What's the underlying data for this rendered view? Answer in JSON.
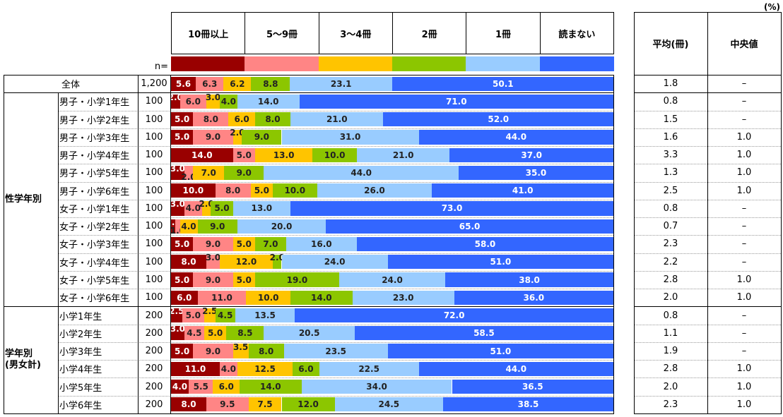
{
  "unit_label": "(%)",
  "n_label": "n=",
  "right_columns": [
    "平均(冊)",
    "中央値"
  ],
  "legend": [
    {
      "label": "10冊以上",
      "color": "#990000",
      "text_color": "#ffffff"
    },
    {
      "label": "5〜9冊",
      "color": "#FF8585",
      "text_color": "#222222"
    },
    {
      "label": "3〜4冊",
      "color": "#FFC400",
      "text_color": "#222222"
    },
    {
      "label": "2冊",
      "color": "#8CC600",
      "text_color": "#222222"
    },
    {
      "label": "1冊",
      "color": "#99CCFF",
      "text_color": "#222222"
    },
    {
      "label": "読まない",
      "color": "#3366FF",
      "text_color": "#ffffff"
    }
  ],
  "chart_data": {
    "type": "bar",
    "orientation": "horizontal-stacked",
    "unit": "%",
    "categories": [
      "10冊以上",
      "5〜9冊",
      "3〜4冊",
      "2冊",
      "1冊",
      "読まない"
    ],
    "xlim": [
      0,
      100
    ],
    "groups": [
      {
        "name": "",
        "rows": [
          {
            "label": "全体",
            "n": "1,200",
            "values": [
              5.6,
              6.3,
              6.2,
              8.8,
              23.1,
              50.1
            ],
            "avg": "1.8",
            "median": "–"
          }
        ]
      },
      {
        "name": "性学年別",
        "rows": [
          {
            "label": "男子・小学1年生",
            "n": "100",
            "values": [
              2.0,
              6.0,
              3.0,
              4.0,
              14.0,
              71.0
            ],
            "avg": "0.8",
            "median": "–"
          },
          {
            "label": "男子・小学2年生",
            "n": "100",
            "values": [
              5.0,
              8.0,
              6.0,
              8.0,
              21.0,
              52.0
            ],
            "avg": "1.5",
            "median": "–"
          },
          {
            "label": "男子・小学3年生",
            "n": "100",
            "values": [
              5.0,
              9.0,
              2.0,
              9.0,
              31.0,
              44.0
            ],
            "avg": "1.6",
            "median": "1.0"
          },
          {
            "label": "男子・小学4年生",
            "n": "100",
            "values": [
              14.0,
              5.0,
              13.0,
              10.0,
              21.0,
              37.0
            ],
            "avg": "3.3",
            "median": "1.0"
          },
          {
            "label": "男子・小学5年生",
            "n": "100",
            "values": [
              3.0,
              2.0,
              7.0,
              9.0,
              44.0,
              35.0
            ],
            "avg": "1.3",
            "median": "1.0"
          },
          {
            "label": "男子・小学6年生",
            "n": "100",
            "values": [
              10.0,
              8.0,
              5.0,
              10.0,
              26.0,
              41.0
            ],
            "avg": "2.5",
            "median": "1.0"
          },
          {
            "label": "女子・小学1年生",
            "n": "100",
            "values": [
              3.0,
              4.0,
              2.0,
              5.0,
              13.0,
              73.0
            ],
            "avg": "0.8",
            "median": "–"
          },
          {
            "label": "女子・小学2年生",
            "n": "100",
            "values": [
              1.0,
              1.0,
              4.0,
              9.0,
              20.0,
              65.0
            ],
            "avg": "0.7",
            "median": "–"
          },
          {
            "label": "女子・小学3年生",
            "n": "100",
            "values": [
              5.0,
              9.0,
              5.0,
              7.0,
              16.0,
              58.0
            ],
            "avg": "2.3",
            "median": "–"
          },
          {
            "label": "女子・小学4年生",
            "n": "100",
            "values": [
              8.0,
              3.0,
              12.0,
              2.0,
              24.0,
              51.0
            ],
            "avg": "2.2",
            "median": "–"
          },
          {
            "label": "女子・小学5年生",
            "n": "100",
            "values": [
              5.0,
              9.0,
              5.0,
              19.0,
              24.0,
              38.0
            ],
            "avg": "2.8",
            "median": "1.0"
          },
          {
            "label": "女子・小学6年生",
            "n": "100",
            "values": [
              6.0,
              11.0,
              10.0,
              14.0,
              23.0,
              36.0
            ],
            "avg": "2.0",
            "median": "1.0"
          }
        ]
      },
      {
        "name": "学年別\n(男女計)",
        "rows": [
          {
            "label": "小学1年生",
            "n": "200",
            "values": [
              2.5,
              5.0,
              2.5,
              4.5,
              13.5,
              72.0
            ],
            "avg": "0.8",
            "median": "–"
          },
          {
            "label": "小学2年生",
            "n": "200",
            "values": [
              3.0,
              4.5,
              5.0,
              8.5,
              20.5,
              58.5
            ],
            "avg": "1.1",
            "median": "–"
          },
          {
            "label": "小学3年生",
            "n": "200",
            "values": [
              5.0,
              9.0,
              3.5,
              8.0,
              23.5,
              51.0
            ],
            "avg": "1.9",
            "median": "–"
          },
          {
            "label": "小学4年生",
            "n": "200",
            "values": [
              11.0,
              4.0,
              12.5,
              6.0,
              22.5,
              44.0
            ],
            "avg": "2.8",
            "median": "1.0"
          },
          {
            "label": "小学5年生",
            "n": "200",
            "values": [
              4.0,
              5.5,
              6.0,
              14.0,
              34.0,
              36.5
            ],
            "avg": "2.0",
            "median": "1.0"
          },
          {
            "label": "小学6年生",
            "n": "200",
            "values": [
              8.0,
              9.5,
              7.5,
              12.0,
              24.5,
              38.5
            ],
            "avg": "2.3",
            "median": "1.0"
          }
        ]
      }
    ]
  }
}
